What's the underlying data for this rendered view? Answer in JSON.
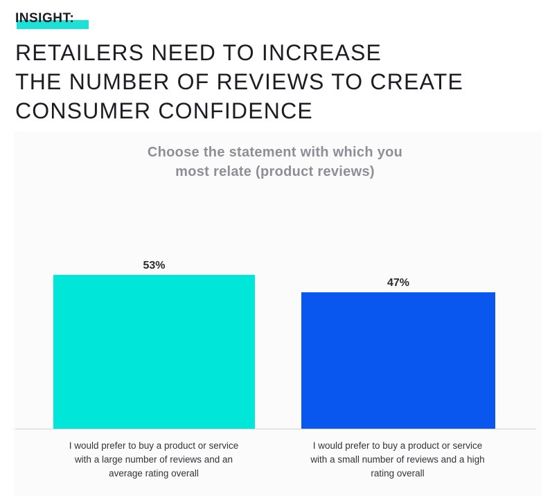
{
  "header": {
    "insight_label": "INSIGHT:",
    "headline_lines": [
      "RETAILERS NEED TO INCREASE",
      "THE NUMBER OF REVIEWS TO CREATE",
      "CONSUMER CONFIDENCE"
    ]
  },
  "colors": {
    "accent": "#1fe0d4",
    "bar_1": "#00e6d8",
    "bar_2": "#0a57f0",
    "text_dark": "#1c1c24",
    "title_gray": "#8e8e96"
  },
  "chart_data": {
    "type": "bar",
    "title_lines": [
      "Choose the statement with which you",
      "most relate (product reviews)"
    ],
    "categories": [
      "I would prefer to buy a product or service with a large number of reviews and an average rating overall",
      "I would prefer to buy a product or service with a small number of reviews and a high rating overall"
    ],
    "category_label_lines": [
      [
        "I would prefer to buy a product or service",
        "with a large number of reviews and an",
        "average rating overall"
      ],
      [
        "I would prefer to buy a product or service",
        "with a small number of reviews and a high",
        "rating overall"
      ]
    ],
    "values": [
      53,
      47
    ],
    "value_labels": [
      "53%",
      "47%"
    ],
    "unit": "%",
    "ylim": [
      0,
      60
    ],
    "grid": false,
    "legend": "none"
  }
}
